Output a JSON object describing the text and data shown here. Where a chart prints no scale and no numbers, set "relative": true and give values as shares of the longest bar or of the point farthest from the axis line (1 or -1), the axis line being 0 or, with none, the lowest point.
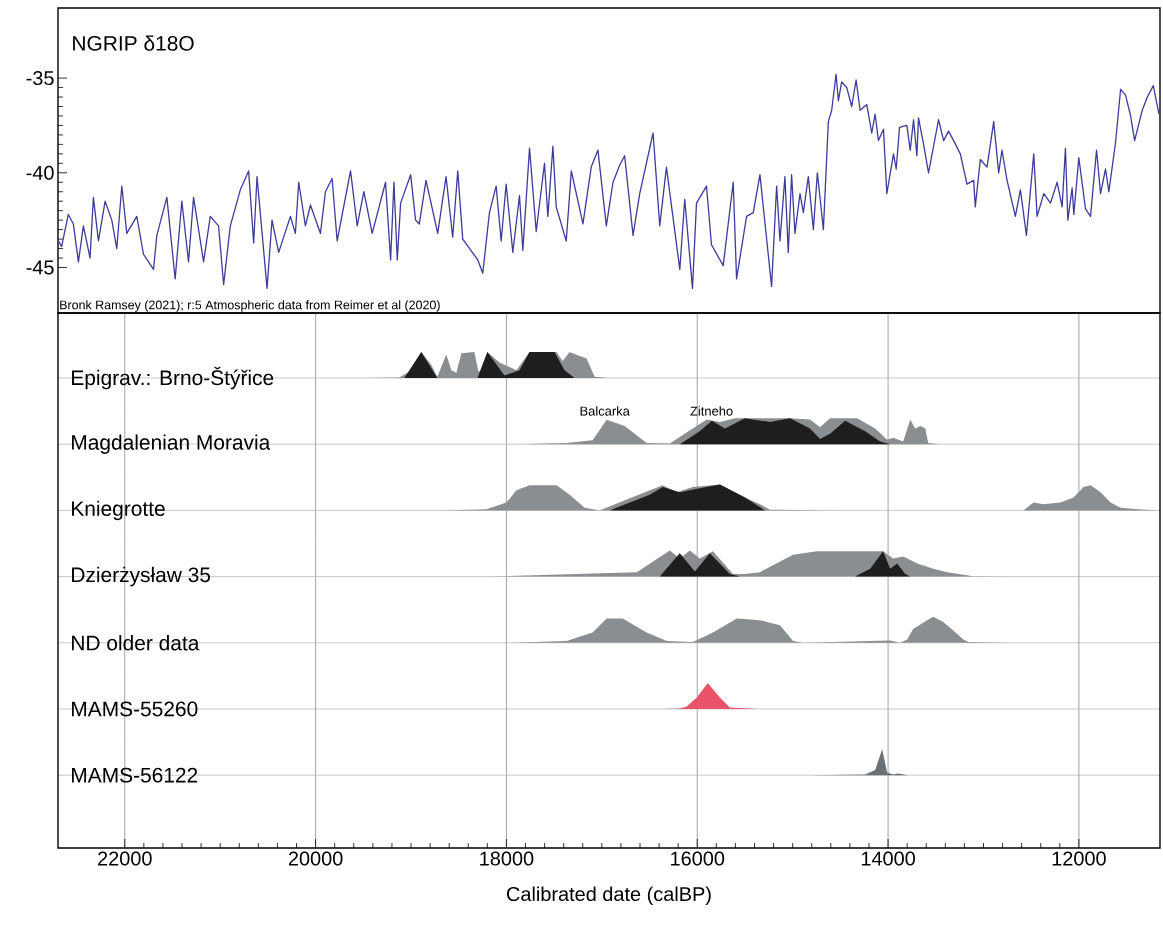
{
  "chart_data": [
    {
      "type": "line",
      "title": "NGRIP δ18O",
      "xlim": [
        22700,
        11150
      ],
      "ylim": [
        -47.4,
        -31.3
      ],
      "yticks": [
        -45,
        -40,
        -35
      ],
      "tick_labels": "y",
      "annotations": [
        "Bronk Ramsey (2021); r:5 Atmospheric data from Reimer et al (2020)"
      ],
      "series": [
        {
          "color": "#3c3c9c",
          "x": [
            22695,
            22662,
            22592,
            22539,
            22486,
            22434,
            22364,
            22329,
            22276,
            22206,
            22136,
            22084,
            22031,
            21979,
            21874,
            21804,
            21699,
            21664,
            21559,
            21472,
            21402,
            21332,
            21279,
            21174,
            21104,
            21017,
            20964,
            20894,
            20789,
            20702,
            20649,
            20614,
            20509,
            20457,
            20387,
            20264,
            20212,
            20177,
            20107,
            20054,
            19949,
            19897,
            19827,
            19774,
            19634,
            19564,
            19494,
            19407,
            19267,
            19214,
            19179,
            19144,
            19109,
            19004,
            18952,
            18913,
            18843,
            18720,
            18633,
            18563,
            18510,
            18458,
            18300,
            18248,
            18178,
            18108,
            18055,
            18003,
            17933,
            17863,
            17828,
            17758,
            17688,
            17601,
            17566,
            17513,
            17478,
            17373,
            17320,
            17198,
            17111,
            17041,
            16953,
            16883,
            16813,
            16761,
            16673,
            16603,
            16463,
            16393,
            16323,
            16183,
            16131,
            16050,
            16008,
            15903,
            15851,
            15728,
            15623,
            15588,
            15483,
            15413,
            15343,
            15221,
            15168,
            15133,
            15081,
            15046,
            15011,
            14976,
            14923,
            14888,
            14836,
            14783,
            14741,
            14678,
            14626,
            14591,
            14545,
            14521,
            14486,
            14433,
            14381,
            14335,
            14293,
            14223,
            14171,
            14136,
            14101,
            14048,
            14013,
            13943,
            13915,
            13880,
            13803,
            13768,
            13733,
            13698,
            13681,
            13628,
            13576,
            13471,
            13418,
            13366,
            13313,
            13243,
            13173,
            13103,
            13086,
            13033,
            12963,
            12893,
            12841,
            12806,
            12753,
            12666,
            12613,
            12550,
            12473,
            12438,
            12368,
            12298,
            12228,
            12176,
            12141,
            12116,
            12071,
            12053,
            12001,
            11931,
            11878,
            11815,
            11773,
            11721,
            11686,
            11616,
            11563,
            11511,
            11458,
            11416,
            11336,
            11283,
            11220,
            11161
          ],
          "values": [
            -43.6,
            -43.9,
            -42.2,
            -42.7,
            -44.7,
            -42.8,
            -44.5,
            -41.3,
            -43.6,
            -41.5,
            -42.5,
            -44.0,
            -40.7,
            -43.2,
            -42.3,
            -44.3,
            -45.1,
            -43.3,
            -41.3,
            -45.6,
            -41.5,
            -44.7,
            -41.3,
            -44.7,
            -42.3,
            -42.8,
            -45.9,
            -42.8,
            -40.9,
            -39.9,
            -43.7,
            -40.2,
            -46.1,
            -42.5,
            -44.2,
            -42.3,
            -43.2,
            -40.5,
            -42.8,
            -41.7,
            -43.2,
            -41.0,
            -40.3,
            -43.6,
            -39.9,
            -42.8,
            -41.0,
            -43.2,
            -40.5,
            -44.6,
            -40.5,
            -44.6,
            -41.6,
            -40.1,
            -42.5,
            -42.7,
            -40.4,
            -43.2,
            -40.2,
            -43.4,
            -39.9,
            -43.5,
            -44.6,
            -45.3,
            -42.1,
            -40.7,
            -43.6,
            -40.6,
            -44.2,
            -41.2,
            -44.1,
            -38.7,
            -43.1,
            -39.5,
            -42.3,
            -38.6,
            -41.8,
            -43.6,
            -39.9,
            -42.7,
            -39.7,
            -38.8,
            -42.8,
            -40.5,
            -39.6,
            -39.1,
            -43.3,
            -41.1,
            -37.9,
            -42.8,
            -39.7,
            -45.1,
            -41.4,
            -46.1,
            -41.6,
            -40.7,
            -43.8,
            -44.9,
            -40.5,
            -45.6,
            -42.3,
            -42.1,
            -40.1,
            -46.0,
            -40.7,
            -43.6,
            -40.2,
            -44.2,
            -40.1,
            -43.2,
            -41.1,
            -42.1,
            -40.2,
            -43.0,
            -40.0,
            -43.0,
            -37.3,
            -36.7,
            -34.8,
            -36.2,
            -35.2,
            -35.5,
            -36.5,
            -35.1,
            -36.7,
            -36.4,
            -37.9,
            -36.9,
            -38.3,
            -37.7,
            -41.1,
            -39.0,
            -39.8,
            -37.6,
            -37.5,
            -38.8,
            -37.2,
            -39.1,
            -37.1,
            -38.5,
            -40.0,
            -37.2,
            -38.3,
            -37.8,
            -38.3,
            -39.0,
            -40.6,
            -40.4,
            -41.8,
            -39.3,
            -39.7,
            -37.3,
            -40.0,
            -38.8,
            -40.4,
            -42.3,
            -40.9,
            -43.3,
            -39.0,
            -42.3,
            -41.1,
            -41.6,
            -40.5,
            -41.8,
            -38.7,
            -42.5,
            -40.8,
            -42.2,
            -39.2,
            -41.9,
            -42.3,
            -38.8,
            -41.1,
            -39.8,
            -41.0,
            -38.4,
            -35.6,
            -35.9,
            -37.0,
            -38.3,
            -36.7,
            -36.0,
            -35.4,
            -36.9
          ]
        }
      ]
    },
    {
      "type": "area",
      "title": "Epigrav.: Brno-Štýřice",
      "relative": true,
      "xlim": [
        22700,
        11150
      ],
      "xticks": [
        22000,
        20000,
        18000,
        16000,
        14000,
        12000
      ],
      "grid": "x",
      "tick_labels": false,
      "series": [
        {
          "color": "#8b8e90",
          "x": [
            19490,
            19123,
            19018,
            18892,
            18787,
            18724,
            18630,
            18577,
            18525,
            18472,
            18336,
            18294,
            18252,
            18200,
            18073,
            17895,
            17758,
            17475,
            17412,
            17338,
            17233,
            17160,
            17076,
            16918
          ],
          "values": [
            0,
            0.02,
            0.25,
            1.0,
            0.5,
            0.05,
            0.9,
            0.3,
            0.2,
            0.95,
            1.0,
            0.25,
            0.3,
            1.0,
            0.6,
            0.3,
            1.0,
            1.0,
            0.65,
            1.0,
            0.85,
            0.75,
            0.05,
            0
          ]
        },
        {
          "color": "#1e1e1e",
          "x": [
            19070,
            18892,
            18724,
            18304,
            18200,
            18020,
            17863,
            17758,
            17496,
            17391,
            17286
          ],
          "values": [
            0,
            1.0,
            0,
            0,
            1.0,
            0.1,
            0.3,
            1.0,
            1.0,
            0.3,
            0
          ]
        }
      ]
    },
    {
      "type": "area",
      "title": "Magdalenian Moravia",
      "relative": true,
      "xlim": [
        22700,
        11150
      ],
      "xticks": [
        22000,
        20000,
        18000,
        16000,
        14000,
        12000
      ],
      "grid": "x",
      "tick_labels": false,
      "annotations": [
        {
          "text": "Balcarka",
          "x": 16970,
          "y": 1.05
        },
        {
          "text": "Zitneho",
          "x": 15850,
          "y": 1.05
        }
      ],
      "series": [
        {
          "color": "#8b8e90",
          "x": [
            17863,
            17370,
            17097,
            16950,
            16761,
            16530,
            16288,
            16047,
            15900,
            15763,
            15605,
            15343,
            15028,
            14818,
            14713,
            14608,
            14324,
            14135,
            14010,
            13946,
            13841,
            13768,
            13715,
            13663,
            13610,
            13579,
            13453
          ],
          "values": [
            0,
            0.05,
            0.15,
            0.94,
            0.7,
            0.05,
            0.03,
            0.6,
            0.95,
            0.85,
            1.0,
            1.0,
            1.0,
            0.95,
            0.65,
            1.0,
            1.0,
            0.6,
            0.17,
            0.25,
            0.1,
            0.94,
            0.6,
            0.7,
            0.6,
            0.05,
            0
          ]
        },
        {
          "color": "#1e1e1e",
          "x": [
            16182,
            15974,
            15847,
            15710,
            15500,
            15238,
            15028,
            14818,
            14713,
            14608,
            14450,
            14240,
            14083,
            13978
          ],
          "values": [
            0,
            0.5,
            0.9,
            0.6,
            1.0,
            0.85,
            1.0,
            0.6,
            0.2,
            0.4,
            0.9,
            0.5,
            0.1,
            0
          ]
        }
      ]
    },
    {
      "type": "area",
      "title": "Kniegrotte",
      "relative": true,
      "xlim": [
        22700,
        11150
      ],
      "xticks": [
        22000,
        20000,
        18000,
        16000,
        14000,
        12000
      ],
      "grid": "x",
      "tick_labels": false,
      "series": [
        {
          "color": "#8b8e90",
          "x": [
            18670,
            18210,
            18000,
            17895,
            17758,
            17475,
            17338,
            17180,
            17023,
            16634,
            16362,
            16215,
            16047,
            15763,
            15500,
            15343,
            15238,
            14503,
            12581,
            12476,
            12371,
            12193,
            12056,
            11951,
            11878,
            11773,
            11668,
            11563,
            11385,
            11175
          ],
          "values": [
            0,
            0.04,
            0.3,
            0.77,
            0.97,
            0.97,
            0.6,
            0.1,
            0,
            0.57,
            0.97,
            0.7,
            0.9,
            1.0,
            0.5,
            0.24,
            0.02,
            0,
            0,
            0.3,
            0.24,
            0.3,
            0.5,
            0.9,
            0.97,
            0.7,
            0.3,
            0.1,
            0.04,
            0
          ]
        },
        {
          "color": "#1e1e1e",
          "x": [
            16918,
            16498,
            16362,
            16183,
            15974,
            15763,
            15500,
            15290
          ],
          "values": [
            0,
            0.6,
            0.9,
            0.7,
            0.85,
            1.0,
            0.5,
            0
          ]
        }
      ]
    },
    {
      "type": "area",
      "title": "Dzierżysław 35",
      "relative": true,
      "xlim": [
        22700,
        11150
      ],
      "xticks": [
        22000,
        20000,
        18000,
        16000,
        14000,
        12000
      ],
      "grid": "x",
      "tick_labels": false,
      "series": [
        {
          "color": "#8b8e90",
          "x": [
            18146,
            16634,
            16288,
            16183,
            16078,
            15973,
            15836,
            15626,
            15500,
            15343,
            14996,
            14745,
            14188,
            14052,
            13947,
            13841,
            13695,
            13527,
            13380,
            13107,
            12435
          ],
          "values": [
            0,
            0.17,
            1.0,
            0.7,
            1.0,
            0.7,
            0.97,
            0.1,
            0.1,
            0.17,
            0.84,
            0.97,
            0.97,
            0.97,
            0.7,
            0.77,
            0.5,
            0.3,
            0.17,
            0.01,
            0
          ]
        },
        {
          "color": "#1e1e1e",
          "x": [
            16393,
            16183,
            16025,
            15868,
            15658,
            15553,
            14346,
            14188,
            14052,
            13978,
            13905,
            13820,
            13768
          ],
          "values": [
            0,
            0.9,
            0.2,
            0.9,
            0.1,
            0,
            0,
            0.3,
            0.97,
            0.3,
            0.5,
            0.1,
            0
          ]
        }
      ]
    },
    {
      "type": "area",
      "title": "ND older data",
      "relative": true,
      "xlim": [
        22700,
        11150
      ],
      "xticks": [
        22000,
        20000,
        18000,
        16000,
        14000,
        12000
      ],
      "grid": "x",
      "tick_labels": false,
      "series": [
        {
          "color": "#8b8e90",
          "x": [
            17968,
            17370,
            17097,
            16950,
            16782,
            16530,
            16320,
            16047,
            15836,
            15585,
            15343,
            15133,
            14996,
            14890,
            13978,
            13873,
            13800,
            13737,
            13590,
            13527,
            13422,
            13317,
            13212,
            13159,
            12750
          ],
          "values": [
            0,
            0.07,
            0.4,
            0.93,
            0.93,
            0.4,
            0.07,
            0.03,
            0.4,
            0.93,
            0.87,
            0.67,
            0.07,
            0,
            0.09,
            0,
            0.13,
            0.53,
            0.87,
            1.0,
            0.8,
            0.47,
            0.13,
            0.03,
            0
          ]
        }
      ]
    },
    {
      "type": "area",
      "title": "MAMS-55260",
      "relative": true,
      "xlim": [
        22700,
        11150
      ],
      "xticks": [
        22000,
        20000,
        18000,
        16000,
        14000,
        12000
      ],
      "grid": "x",
      "tick_labels": false,
      "series": [
        {
          "color": "#e9546b",
          "x": [
            16362,
            16183,
            16110,
            16005,
            15890,
            15763,
            15658,
            15364
          ],
          "values": [
            0,
            0.02,
            0.1,
            0.44,
            1.0,
            0.44,
            0.06,
            0
          ]
        }
      ]
    },
    {
      "type": "area",
      "title": "MAMS-56122",
      "relative": true,
      "xlim": [
        22700,
        11150
      ],
      "xticks": [
        22000,
        20000,
        18000,
        16000,
        14000,
        12000
      ],
      "grid": "x",
      "tick_labels": "x",
      "xlabel": "Calibrated date (calBP)",
      "series": [
        {
          "color": "#6b7073",
          "x": [
            14818,
            14240,
            14135,
            14062,
            14010,
            13947,
            13894,
            13789
          ],
          "values": [
            0,
            0.03,
            0.2,
            1.0,
            0.1,
            0.03,
            0.06,
            0
          ]
        }
      ]
    }
  ]
}
